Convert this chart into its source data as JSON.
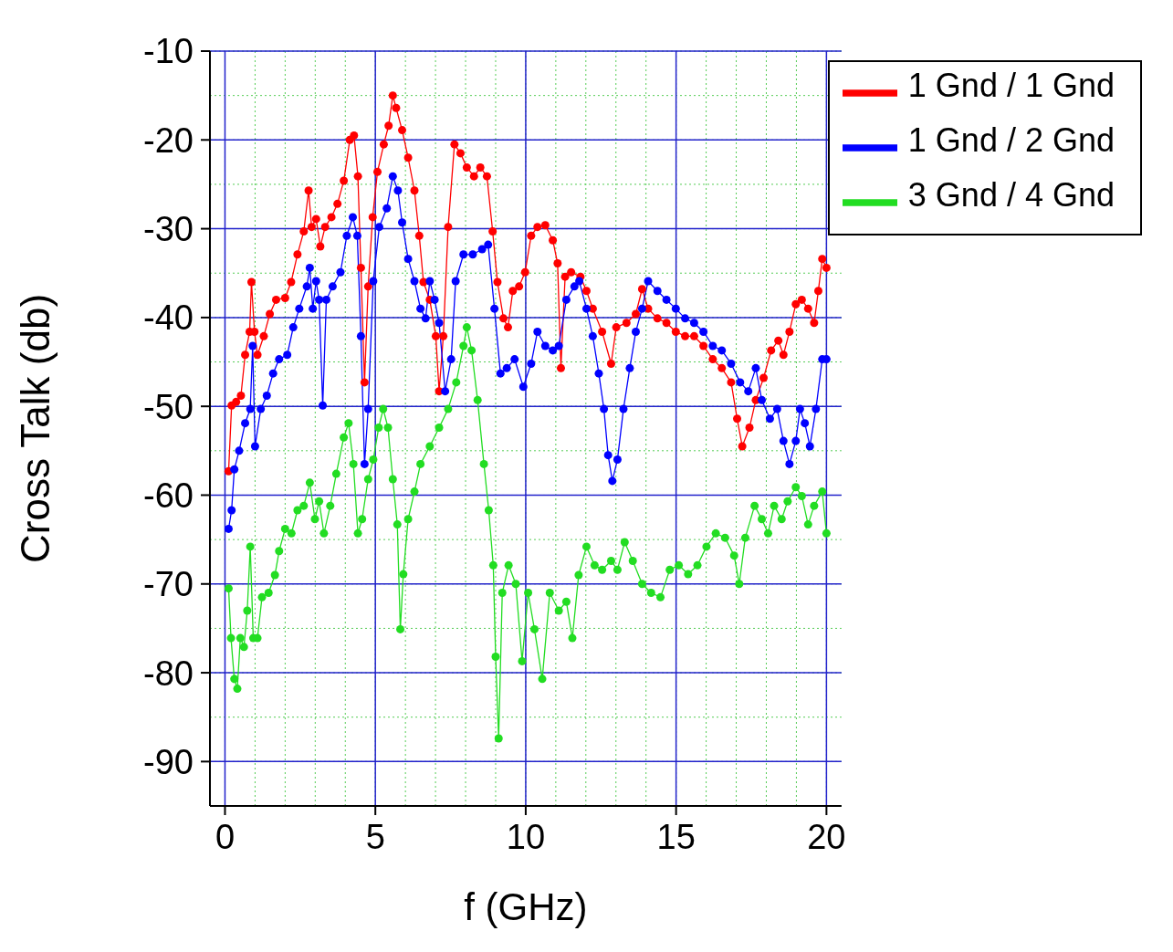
{
  "chart_data": {
    "type": "line",
    "xlabel": "f (GHz)",
    "ylabel": "Cross Talk (db)",
    "xlim": [
      -0.5,
      20.5
    ],
    "ylim": [
      -95,
      -10
    ],
    "xticks": [
      0,
      5,
      10,
      15,
      20
    ],
    "yticks": [
      -90,
      -80,
      -70,
      -60,
      -50,
      -40,
      -30,
      -20,
      -10
    ],
    "grid": true,
    "legend": "top right",
    "marker": "circle",
    "line_style": "solid",
    "series": [
      {
        "name": "1 Gnd / 1 Gnd",
        "color": "#ff0000",
        "x": [
          0.12,
          0.22,
          0.37,
          0.53,
          0.67,
          0.82,
          0.88,
          0.98,
          1.08,
          1.29,
          1.49,
          1.7,
          2.0,
          2.2,
          2.41,
          2.62,
          2.78,
          2.88,
          3.03,
          3.17,
          3.33,
          3.54,
          3.74,
          3.95,
          4.15,
          4.29,
          4.42,
          4.52,
          4.64,
          4.76,
          4.91,
          5.07,
          5.28,
          5.44,
          5.58,
          5.69,
          5.89,
          6.09,
          6.3,
          6.46,
          6.6,
          6.81,
          7.01,
          7.12,
          7.26,
          7.42,
          7.63,
          7.83,
          8.04,
          8.28,
          8.49,
          8.71,
          8.9,
          9.06,
          9.26,
          9.41,
          9.57,
          9.78,
          9.98,
          10.18,
          10.39,
          10.65,
          10.9,
          11.06,
          11.17,
          11.31,
          11.51,
          11.82,
          12.02,
          12.23,
          12.54,
          12.84,
          13.01,
          13.35,
          13.66,
          13.87,
          14.07,
          14.38,
          14.68,
          14.99,
          15.3,
          15.6,
          15.91,
          16.22,
          16.52,
          16.83,
          17.03,
          17.2,
          17.44,
          17.65,
          17.91,
          18.16,
          18.4,
          18.57,
          18.77,
          18.98,
          19.18,
          19.39,
          19.59,
          19.73,
          19.86,
          20.0
        ],
        "values": [
          -57.3,
          -49.9,
          -49.5,
          -48.8,
          -44.2,
          -41.6,
          -36,
          -41.6,
          -44.2,
          -42.1,
          -39.6,
          -38,
          -37.8,
          -36,
          -32.9,
          -30.3,
          -25.7,
          -29.8,
          -28.9,
          -32,
          -29.8,
          -28.7,
          -27.2,
          -24.6,
          -20,
          -19.5,
          -24.1,
          -34.4,
          -47.3,
          -36.5,
          -28.7,
          -23.6,
          -20.5,
          -18.4,
          -15,
          -16.4,
          -18.9,
          -22,
          -25.7,
          -30.8,
          -36,
          -38,
          -42.1,
          -48.3,
          -42.1,
          -29.8,
          -20.5,
          -21.5,
          -23.1,
          -24.1,
          -23.1,
          -24.1,
          -30.3,
          -36,
          -40.1,
          -41.1,
          -37,
          -36.5,
          -34.9,
          -30.8,
          -29.8,
          -29.6,
          -31.3,
          -33.9,
          -45.7,
          -35.4,
          -34.9,
          -35.4,
          -37,
          -39,
          -41.6,
          -45.2,
          -41.1,
          -40.6,
          -39.6,
          -36.8,
          -39,
          -40.1,
          -40.6,
          -41.6,
          -42.1,
          -42.1,
          -43.2,
          -44.7,
          -45.7,
          -47.3,
          -51.4,
          -54.5,
          -52.4,
          -49.3,
          -46.8,
          -43.7,
          -42.6,
          -44.2,
          -41.6,
          -38.5,
          -38,
          -39,
          -40.6,
          -37,
          -33.4,
          -34.4
        ]
      },
      {
        "name": "1 Gnd / 2 Gnd",
        "color": "#0000ff",
        "x": [
          0.12,
          0.22,
          0.31,
          0.47,
          0.67,
          0.84,
          0.92,
          1.0,
          1.19,
          1.39,
          1.6,
          1.8,
          2.07,
          2.27,
          2.47,
          2.72,
          2.82,
          2.92,
          3.03,
          3.13,
          3.25,
          3.37,
          3.58,
          3.84,
          4.05,
          4.25,
          4.4,
          4.52,
          4.64,
          4.76,
          4.93,
          5.13,
          5.38,
          5.58,
          5.75,
          5.89,
          6.09,
          6.3,
          6.5,
          6.67,
          6.81,
          6.97,
          7.12,
          7.32,
          7.52,
          7.67,
          7.93,
          8.24,
          8.55,
          8.75,
          8.96,
          9.16,
          9.37,
          9.63,
          9.92,
          10.18,
          10.39,
          10.65,
          10.9,
          11.1,
          11.35,
          11.62,
          11.78,
          12.02,
          12.23,
          12.43,
          12.6,
          12.74,
          12.88,
          13.05,
          13.25,
          13.46,
          13.66,
          13.87,
          14.07,
          14.38,
          14.68,
          14.99,
          15.3,
          15.6,
          15.91,
          16.22,
          16.52,
          16.83,
          17.13,
          17.4,
          17.65,
          17.85,
          18.12,
          18.36,
          18.57,
          18.77,
          18.98,
          19.12,
          19.28,
          19.45,
          19.65,
          19.86,
          20.0
        ],
        "values": [
          -63.8,
          -61.7,
          -57.1,
          -55,
          -51.9,
          -50.3,
          -43.2,
          -54.5,
          -50.3,
          -48.8,
          -46.3,
          -44.7,
          -44.2,
          -41.1,
          -39,
          -36.5,
          -34.4,
          -39,
          -35.9,
          -38,
          -49.9,
          -38,
          -36.5,
          -34.9,
          -30.8,
          -28.7,
          -30.8,
          -42.1,
          -56.5,
          -50.3,
          -35.9,
          -29.8,
          -27.7,
          -24.1,
          -25.7,
          -29.3,
          -33.4,
          -35.9,
          -39,
          -40.1,
          -35.9,
          -38,
          -40.6,
          -48.3,
          -44.7,
          -35.9,
          -32.9,
          -32.9,
          -32.3,
          -31.8,
          -39,
          -46.3,
          -45.7,
          -44.7,
          -47.8,
          -45.2,
          -41.6,
          -43.2,
          -43.7,
          -43.2,
          -38,
          -36.5,
          -35.9,
          -39,
          -42.1,
          -46.3,
          -50.3,
          -55.5,
          -58.4,
          -56,
          -50.3,
          -45.7,
          -41.6,
          -39,
          -35.9,
          -37,
          -38,
          -39,
          -40.1,
          -40.6,
          -41.6,
          -43.2,
          -43.7,
          -45.2,
          -47.3,
          -48.3,
          -45.7,
          -49.3,
          -51.4,
          -50.3,
          -53.9,
          -56.5,
          -53.9,
          -50.3,
          -51.9,
          -54.5,
          -50.3,
          -44.7,
          -44.7
        ]
      },
      {
        "name": "3 Gnd / 4 Gnd",
        "color": "#22dd22",
        "x": [
          0.12,
          0.2,
          0.31,
          0.41,
          0.51,
          0.63,
          0.74,
          0.84,
          0.94,
          1.08,
          1.23,
          1.45,
          1.66,
          1.8,
          2.0,
          2.21,
          2.41,
          2.62,
          2.82,
          2.99,
          3.13,
          3.29,
          3.5,
          3.7,
          3.95,
          4.11,
          4.27,
          4.42,
          4.56,
          4.76,
          4.93,
          5.11,
          5.26,
          5.42,
          5.58,
          5.73,
          5.83,
          5.93,
          6.09,
          6.3,
          6.5,
          6.81,
          7.12,
          7.42,
          7.69,
          7.93,
          8.04,
          8.2,
          8.4,
          8.61,
          8.77,
          8.92,
          9.0,
          9.1,
          9.22,
          9.43,
          9.67,
          9.88,
          10.08,
          10.29,
          10.55,
          10.8,
          11.1,
          11.35,
          11.55,
          11.76,
          12.02,
          12.29,
          12.54,
          12.84,
          13.05,
          13.29,
          13.56,
          13.87,
          14.17,
          14.48,
          14.79,
          15.09,
          15.4,
          15.71,
          16.01,
          16.32,
          16.63,
          16.93,
          17.1,
          17.3,
          17.61,
          17.85,
          18.06,
          18.26,
          18.51,
          18.71,
          18.98,
          19.18,
          19.39,
          19.59,
          19.86,
          20.0
        ],
        "values": [
          -70.5,
          -76.1,
          -80.7,
          -81.8,
          -76.1,
          -77.1,
          -73,
          -65.8,
          -76.1,
          -76.1,
          -71.5,
          -71,
          -69,
          -66.3,
          -63.8,
          -64.3,
          -61.7,
          -61.2,
          -58.6,
          -62.7,
          -60.7,
          -64.3,
          -61.2,
          -57.6,
          -53.5,
          -51.9,
          -56.5,
          -64.3,
          -62.7,
          -58.2,
          -56,
          -52.4,
          -50.3,
          -52.4,
          -58.2,
          -63.3,
          -75.1,
          -68.9,
          -62.7,
          -59.6,
          -56.5,
          -54.5,
          -52.4,
          -50.3,
          -47.3,
          -43.2,
          -41.1,
          -43.7,
          -49.3,
          -56.5,
          -61.7,
          -67.9,
          -78.2,
          -87.4,
          -71,
          -67.9,
          -70,
          -78.7,
          -71,
          -75.1,
          -80.7,
          -71,
          -73,
          -72,
          -76.1,
          -69,
          -65.8,
          -67.9,
          -68.4,
          -67.4,
          -68.4,
          -65.3,
          -67.4,
          -70,
          -71,
          -71.5,
          -68.4,
          -67.9,
          -68.9,
          -67.9,
          -65.8,
          -64.3,
          -64.8,
          -66.8,
          -70,
          -64.8,
          -61.2,
          -62.7,
          -64.3,
          -61.2,
          -62.7,
          -60.7,
          -59.1,
          -60.1,
          -63.3,
          -61.2,
          -59.6,
          -64.3
        ]
      }
    ]
  }
}
